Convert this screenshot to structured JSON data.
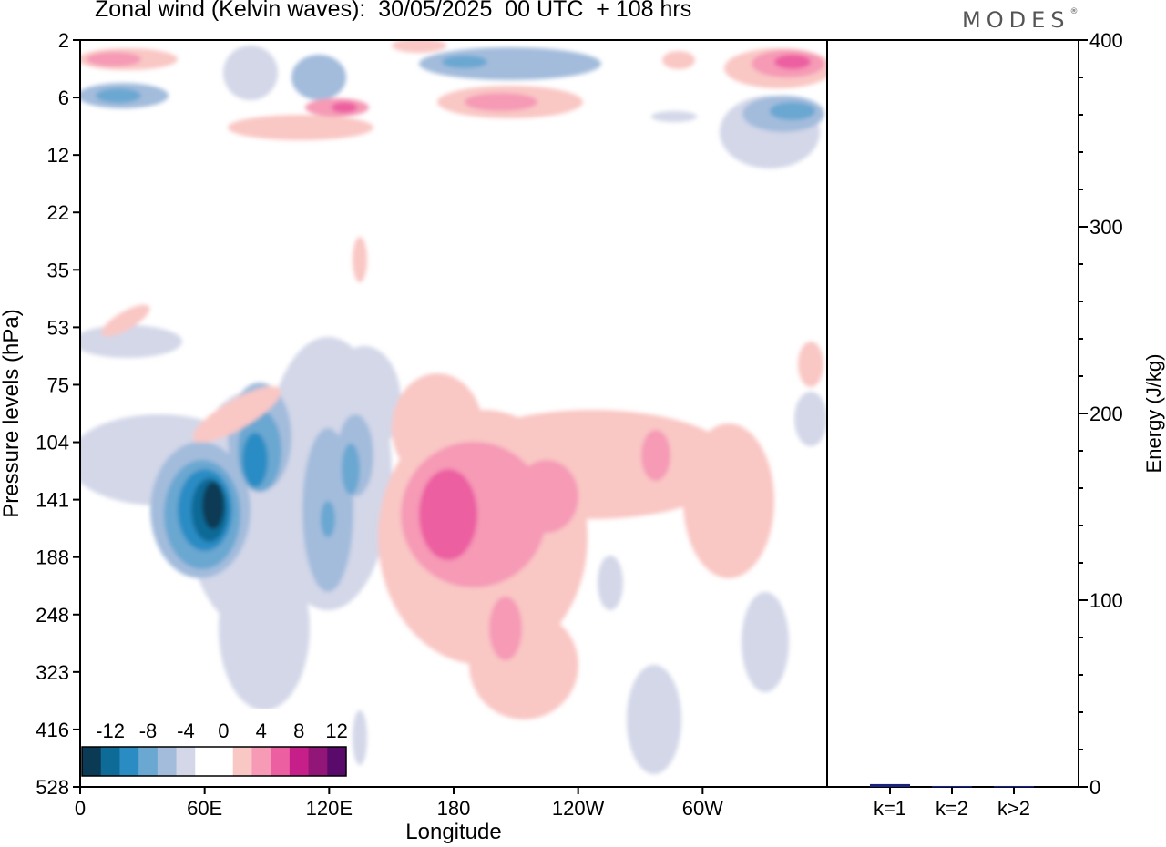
{
  "title": "Zonal wind (Kelvin waves):  30/05/2025  00 UTC  + 108 hrs",
  "brand": "MODES",
  "brand_mark": "®",
  "chart_data": [
    {
      "type": "heatmap",
      "xlabel": "Longitude",
      "ylabel": "Pressure levels (hPa)",
      "x_ticks": [
        "0",
        "60E",
        "120E",
        "180",
        "120W",
        "60W"
      ],
      "y_ticks": [
        "2",
        "6",
        "12",
        "22",
        "35",
        "53",
        "75",
        "104",
        "141",
        "188",
        "248",
        "323",
        "416",
        "528"
      ],
      "colorbar": {
        "labels": [
          "-12",
          "-8",
          "-4",
          "0",
          "4",
          "8",
          "12"
        ],
        "colors": [
          "#0b3a55",
          "#0e6a97",
          "#2b8cc4",
          "#6aa7d1",
          "#a3bcdc",
          "#d3d7e8",
          "#ffffff",
          "#ffffff",
          "#f9c7c4",
          "#f69ab6",
          "#ec5fa1",
          "#c71f89",
          "#921678",
          "#5a0a6b"
        ]
      },
      "features": [
        {
          "sign": "negative",
          "lon_center": 60,
          "level_center": "141",
          "peak": -14
        },
        {
          "sign": "negative",
          "lon_center": 90,
          "level_center": "104",
          "peak": -10
        },
        {
          "sign": "negative",
          "lon_center": 125,
          "level_center": "141",
          "peak": -6
        },
        {
          "sign": "positive",
          "lon_center": 180,
          "level_center": "141",
          "peak": 9
        },
        {
          "sign": "positive",
          "lon_center": 205,
          "level_center": "141",
          "peak": 6
        },
        {
          "sign": "positive",
          "lon_center": 195,
          "level_center": "248",
          "peak": 5
        },
        {
          "sign": "positive",
          "lon_center": 255,
          "level_center": "104",
          "peak": 5
        },
        {
          "sign": "negative",
          "lon_center": 305,
          "level_center": "248",
          "peak": -5
        },
        {
          "sign": "positive",
          "lon_center": 335,
          "level_center": "2",
          "peak": 10
        },
        {
          "sign": "negative",
          "lon_center": 345,
          "level_center": "6",
          "peak": -8
        },
        {
          "sign": "positive",
          "lon_center": 125,
          "level_center": "6",
          "peak": 9
        },
        {
          "sign": "negative",
          "lon_center": 185,
          "level_center": "2",
          "peak": -7
        },
        {
          "sign": "positive",
          "lon_center": 200,
          "level_center": "6",
          "peak": 6
        },
        {
          "sign": "positive",
          "lon_center": 10,
          "level_center": "2",
          "peak": 6
        },
        {
          "sign": "negative",
          "lon_center": 20,
          "level_center": "6",
          "peak": -6
        }
      ]
    },
    {
      "type": "bar",
      "ylabel": "Energy (J/kg)",
      "ylim": [
        0,
        400
      ],
      "y_ticks": [
        0,
        100,
        200,
        300,
        400
      ],
      "categories": [
        "k=1",
        "k=2",
        "k>2"
      ],
      "values": [
        1.5,
        0.5,
        0.5
      ],
      "bar_color": "#1a237e"
    }
  ]
}
